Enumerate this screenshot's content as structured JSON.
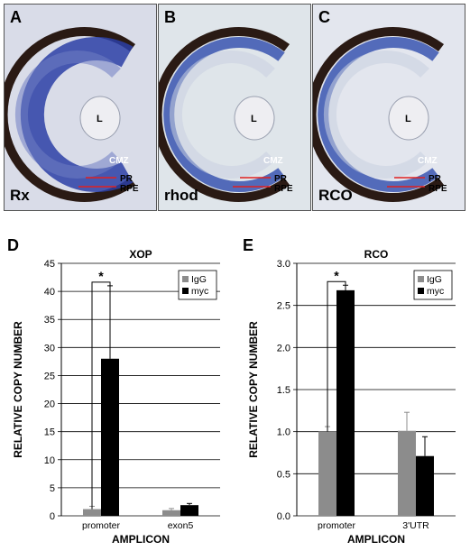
{
  "figure": {
    "panels": [
      {
        "letter": "A",
        "label": "Rx",
        "labels": {
          "lens": "L",
          "cmz": "CMZ",
          "pr": "PR",
          "rpe": "RPE"
        },
        "bg": "#d9dce8",
        "stain": "#2b3fa6"
      },
      {
        "letter": "B",
        "label": "rhod",
        "labels": {
          "lens": "L",
          "cmz": "CMZ",
          "pr": "PR",
          "rpe": "RPE"
        },
        "bg": "#dfe5ea",
        "stain": "#3a55b0"
      },
      {
        "letter": "C",
        "label": "RCO",
        "labels": {
          "lens": "L",
          "cmz": "CMZ",
          "pr": "PR",
          "rpe": "RPE"
        },
        "bg": "#e3e6ee",
        "stain": "#3a55b0"
      }
    ]
  },
  "chart_data": [
    {
      "panel": "D",
      "type": "bar",
      "title": "XOP",
      "xlabel": "AMPLICON",
      "ylabel": "RELATIVE COPY NUMBER",
      "categories": [
        "promoter",
        "exon5"
      ],
      "series": [
        {
          "name": "IgG",
          "values": [
            1.2,
            1.0
          ],
          "errors": [
            0.5,
            0.3
          ],
          "color": "#8c8c8c"
        },
        {
          "name": "myc",
          "values": [
            28,
            1.9
          ],
          "errors": [
            13,
            0.3
          ],
          "color": "#000000"
        }
      ],
      "ylim": [
        0,
        45
      ],
      "yticks": [
        "0",
        "5",
        "10",
        "15",
        "20",
        "25",
        "30",
        "35",
        "40",
        "45"
      ],
      "grid": true,
      "legend": "top-right",
      "significance": {
        "category": "promoter",
        "mark": "*"
      }
    },
    {
      "panel": "E",
      "type": "bar",
      "title": "RCO",
      "xlabel": "AMPLICON",
      "ylabel": "RELATIVE COPY NUMBER",
      "categories": [
        "promoter",
        "3'UTR"
      ],
      "series": [
        {
          "name": "IgG",
          "values": [
            1.0,
            1.01
          ],
          "errors": [
            0.06,
            0.22
          ],
          "color": "#8c8c8c"
        },
        {
          "name": "myc",
          "values": [
            2.68,
            0.71
          ],
          "errors": [
            0.06,
            0.23
          ],
          "color": "#000000"
        }
      ],
      "ylim": [
        0,
        3.0
      ],
      "yticks": [
        "0.0",
        "0.5",
        "1.0",
        "1.5",
        "2.0",
        "2.5",
        "3.0"
      ],
      "grid": true,
      "legend": "top-right",
      "significance": {
        "category": "promoter",
        "mark": "*"
      }
    }
  ]
}
